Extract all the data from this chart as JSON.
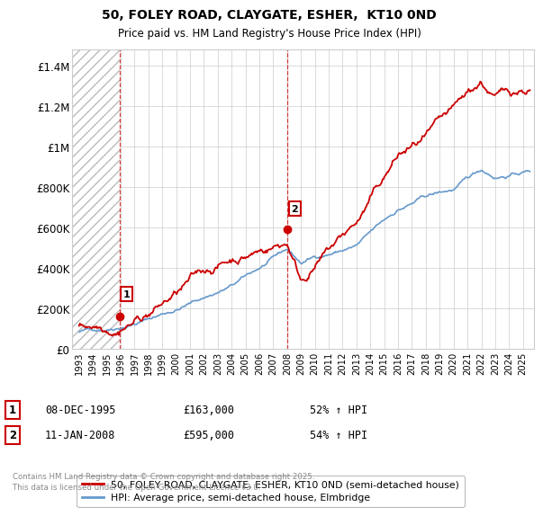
{
  "title": "50, FOLEY ROAD, CLAYGATE, ESHER,  KT10 0ND",
  "subtitle": "Price paid vs. HM Land Registry's House Price Index (HPI)",
  "ylabel_ticks": [
    "£0",
    "£200K",
    "£400K",
    "£600K",
    "£800K",
    "£1M",
    "£1.2M",
    "£1.4M"
  ],
  "ylim": [
    0,
    1480000
  ],
  "marker1_year": 1995.92,
  "marker1_value": 163000,
  "marker2_year": 2008.04,
  "marker2_value": 595000,
  "vline1_year": 1995.92,
  "vline2_year": 2008.04,
  "legend_line1": "50, FOLEY ROAD, CLAYGATE, ESHER, KT10 0ND (semi-detached house)",
  "legend_line2": "HPI: Average price, semi-detached house, Elmbridge",
  "table_rows": [
    {
      "num": "1",
      "date": "08-DEC-1995",
      "price": "£163,000",
      "hpi": "52% ↑ HPI"
    },
    {
      "num": "2",
      "date": "11-JAN-2008",
      "price": "£595,000",
      "hpi": "54% ↑ HPI"
    }
  ],
  "footnote": "Contains HM Land Registry data © Crown copyright and database right 2025.\nThis data is licensed under the Open Government Licence v3.0.",
  "red_color": "#cc0000",
  "blue_color": "#6699cc",
  "grid_color": "#cccccc"
}
